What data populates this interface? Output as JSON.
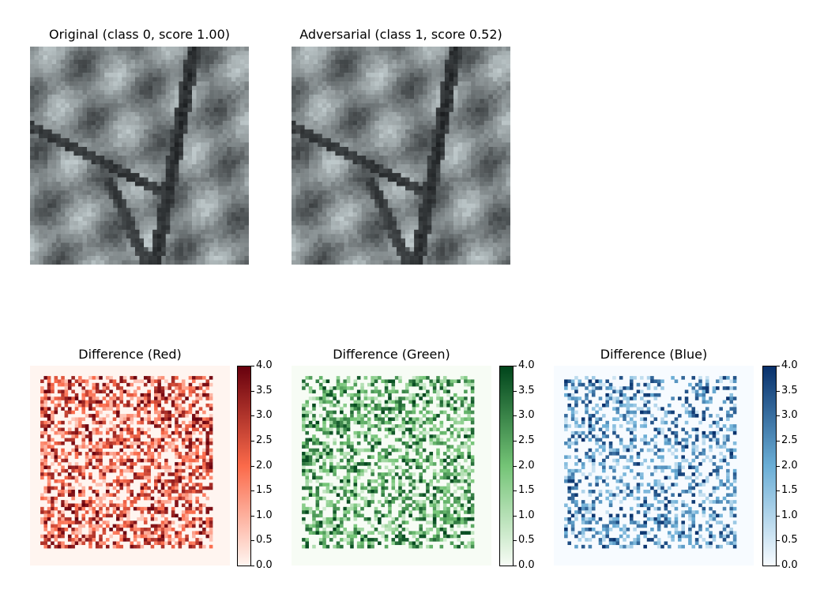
{
  "figure": {
    "original": {
      "title": "Original (class 0, score 1.00)"
    },
    "adversarial": {
      "title": "Adversarial (class 1, score 0.52)"
    }
  },
  "chart_data": [
    {
      "type": "heatmap",
      "title": "Difference (Red)",
      "colormap": "Reds",
      "clim": [
        0.0,
        4.0
      ],
      "colorbar_ticks": [
        "0.0",
        "0.5",
        "1.0",
        "1.5",
        "2.0",
        "2.5",
        "3.0",
        "3.5",
        "4.0"
      ],
      "cmap_low": "#fff5f0",
      "cmap_high": "#67000d"
    },
    {
      "type": "heatmap",
      "title": "Difference (Green)",
      "colormap": "Greens",
      "clim": [
        0.0,
        4.0
      ],
      "colorbar_ticks": [
        "0.0",
        "0.5",
        "1.0",
        "1.5",
        "2.0",
        "2.5",
        "3.0",
        "3.5",
        "4.0"
      ],
      "cmap_low": "#f7fcf5",
      "cmap_high": "#00441b"
    },
    {
      "type": "heatmap",
      "title": "Difference (Blue)",
      "colormap": "Blues",
      "clim": [
        0.0,
        4.0
      ],
      "colorbar_ticks": [
        "0.0",
        "0.5",
        "1.0",
        "1.5",
        "2.0",
        "2.5",
        "3.0",
        "3.5",
        "4.0"
      ],
      "cmap_low": "#f7fbff",
      "cmap_high": "#08306b"
    }
  ]
}
